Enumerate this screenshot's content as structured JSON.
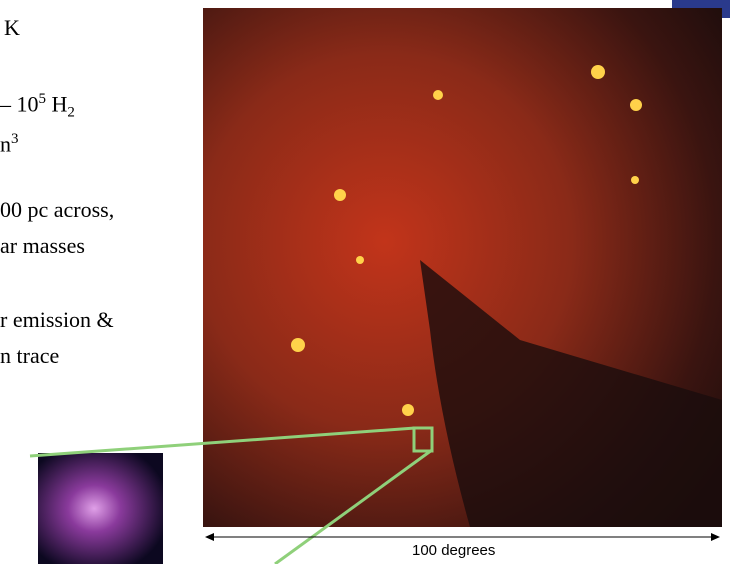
{
  "slide": {
    "text_lines": [
      "K",
      "n",
      "00 pc across,",
      "ar masses",
      "r emission &",
      "n trace"
    ],
    "density_line": {
      "base": "– 10",
      "sup": "5",
      "after": " H",
      "sub": "2"
    },
    "volume_sup": "3",
    "scale_label": "100 degrees"
  }
}
